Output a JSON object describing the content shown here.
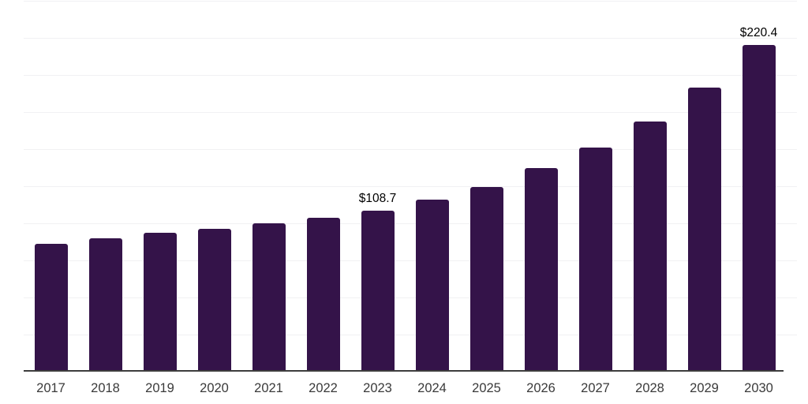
{
  "chart_data": {
    "type": "bar",
    "title": "",
    "xlabel": "",
    "ylabel": "",
    "categories": [
      "2017",
      "2018",
      "2019",
      "2020",
      "2021",
      "2022",
      "2023",
      "2024",
      "2025",
      "2026",
      "2027",
      "2028",
      "2029",
      "2030"
    ],
    "values": [
      86.1,
      89.9,
      93.6,
      96.3,
      99.9,
      103.7,
      108.7,
      115.8,
      124.3,
      137.0,
      151.3,
      168.8,
      191.4,
      220.4
    ],
    "data_labels": [
      {
        "index": 6,
        "text": "$108.7"
      },
      {
        "index": 13,
        "text": "$220.4"
      }
    ],
    "currency_prefix": "$",
    "ylim": [
      0,
      250
    ],
    "gridline_step": 25,
    "grid": true,
    "legend": "none",
    "colors": {
      "bar": "#341349",
      "axis": "#3d3d3d",
      "gridline": "#f1f1f3",
      "tick_label": "#3a3a3a",
      "value_label": "#000000",
      "background": "#ffffff"
    }
  }
}
